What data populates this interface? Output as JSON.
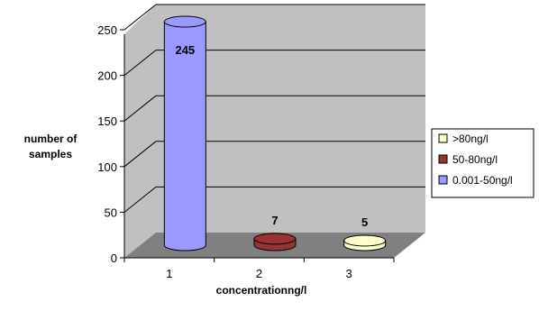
{
  "chart_data": {
    "type": "bar",
    "categories": [
      "1",
      "2",
      "3"
    ],
    "values": [
      245,
      7,
      5
    ],
    "data_labels": [
      "245",
      "7",
      "5"
    ],
    "bar_colors": [
      "#9999ff",
      "#993333",
      "#ffffcc"
    ],
    "xlabel": "concentrationng/l",
    "ylabel_lines": [
      "number of",
      "samples"
    ],
    "ylim": [
      0,
      250
    ],
    "yticks": [
      0,
      50,
      100,
      150,
      200,
      250
    ],
    "grid": true,
    "legend_position": "right",
    "legend": [
      {
        "label": ">80ng/l",
        "color": "#ffffcc"
      },
      {
        "label": "50-80ng/l",
        "color": "#993333"
      },
      {
        "label": "0.001-50ng/l",
        "color": "#9999ff"
      }
    ]
  }
}
